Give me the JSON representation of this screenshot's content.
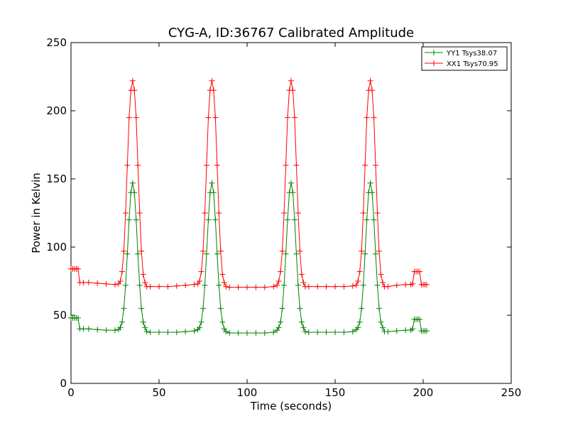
{
  "chart_data": {
    "type": "line",
    "title": "CYG-A, ID:36767 Calibrated Amplitude",
    "xlabel": "Time (seconds)",
    "ylabel": "Power in Kelvin",
    "xlim": [
      0,
      250
    ],
    "ylim": [
      0,
      250
    ],
    "xticks": [
      "0",
      "50",
      "100",
      "150",
      "200",
      "250"
    ],
    "yticks": [
      "0",
      "50",
      "100",
      "150",
      "200",
      "250"
    ],
    "grid": false,
    "legend_position": "top-right",
    "series": [
      {
        "name": "YY1 Tsys38.07",
        "color": "#008000",
        "marker": "+",
        "x": [
          0,
          1,
          2,
          3,
          4,
          5,
          7,
          10,
          15,
          20,
          25,
          27,
          28,
          29,
          30,
          31,
          32,
          33,
          34,
          35,
          36,
          37,
          38,
          39,
          40,
          41,
          42,
          43,
          45,
          50,
          55,
          60,
          65,
          70,
          72,
          73,
          74,
          75,
          76,
          77,
          78,
          79,
          80,
          81,
          82,
          83,
          84,
          85,
          86,
          87,
          88,
          90,
          95,
          100,
          105,
          110,
          115,
          117,
          118,
          119,
          120,
          121,
          122,
          123,
          124,
          125,
          126,
          127,
          128,
          129,
          130,
          131,
          132,
          133,
          135,
          140,
          145,
          150,
          155,
          160,
          162,
          163,
          164,
          165,
          166,
          167,
          168,
          169,
          170,
          171,
          172,
          173,
          174,
          175,
          176,
          177,
          178,
          180,
          185,
          190,
          193,
          194,
          195,
          196,
          197,
          198,
          199,
          200,
          201,
          202
        ],
        "y": [
          48,
          48,
          48,
          48,
          48,
          40,
          40,
          40,
          39.5,
          39,
          39,
          39.5,
          41,
          45,
          55,
          72,
          95,
          120,
          140,
          147,
          140,
          120,
          95,
          72,
          55,
          45,
          41,
          38,
          37.5,
          37.5,
          37.5,
          37.5,
          38,
          38.5,
          39.5,
          41,
          45,
          55,
          72,
          95,
          120,
          140,
          147,
          140,
          120,
          95,
          72,
          55,
          45,
          40,
          38,
          37,
          37,
          37,
          37,
          37,
          37.5,
          39,
          41,
          45,
          55,
          72,
          95,
          120,
          140,
          147,
          140,
          120,
          95,
          72,
          55,
          45,
          41,
          38,
          37.5,
          37.5,
          37.5,
          37.5,
          37.5,
          38,
          39.5,
          41,
          45,
          55,
          72,
          95,
          120,
          140,
          147,
          140,
          120,
          95,
          72,
          55,
          45,
          41,
          38,
          38,
          38.5,
          39,
          39,
          40,
          47,
          47,
          47,
          47,
          38.5,
          38.5,
          38.5,
          38.5
        ]
      },
      {
        "name": "XX1 Tsys70.95",
        "color": "#ff0000",
        "marker": "+",
        "x": [
          0,
          1,
          2,
          3,
          4,
          5,
          7,
          10,
          15,
          20,
          25,
          27,
          28,
          29,
          30,
          31,
          32,
          33,
          34,
          35,
          36,
          37,
          38,
          39,
          40,
          41,
          42,
          43,
          45,
          50,
          55,
          60,
          65,
          70,
          72,
          73,
          74,
          75,
          76,
          77,
          78,
          79,
          80,
          81,
          82,
          83,
          84,
          85,
          86,
          87,
          88,
          90,
          95,
          100,
          105,
          110,
          115,
          117,
          118,
          119,
          120,
          121,
          122,
          123,
          124,
          125,
          126,
          127,
          128,
          129,
          130,
          131,
          132,
          133,
          135,
          140,
          145,
          150,
          155,
          160,
          162,
          163,
          164,
          165,
          166,
          167,
          168,
          169,
          170,
          171,
          172,
          173,
          174,
          175,
          176,
          177,
          178,
          180,
          185,
          190,
          193,
          194,
          195,
          196,
          197,
          198,
          199,
          200,
          201,
          202
        ],
        "y": [
          84,
          84,
          84,
          84,
          84,
          74,
          74,
          74,
          73.5,
          73,
          72.5,
          73,
          75,
          82,
          97,
          125,
          160,
          195,
          215,
          222,
          215,
          195,
          160,
          125,
          97,
          80,
          74,
          71,
          71,
          71,
          71,
          71.5,
          72,
          72.5,
          73,
          75,
          82,
          97,
          125,
          160,
          195,
          215,
          222,
          215,
          195,
          160,
          125,
          97,
          80,
          74,
          71,
          70.5,
          70.5,
          70.5,
          70.5,
          70.5,
          71,
          72,
          75,
          82,
          97,
          125,
          160,
          195,
          215,
          222,
          215,
          195,
          160,
          125,
          97,
          80,
          74,
          71,
          71,
          71,
          71,
          71,
          71,
          71.5,
          72,
          75,
          82,
          97,
          125,
          160,
          195,
          215,
          222,
          215,
          195,
          160,
          125,
          97,
          80,
          74,
          71,
          71,
          72,
          72.5,
          72.5,
          73,
          82,
          82,
          82,
          82,
          72.5,
          72.5,
          72.5,
          72.5
        ]
      }
    ]
  }
}
